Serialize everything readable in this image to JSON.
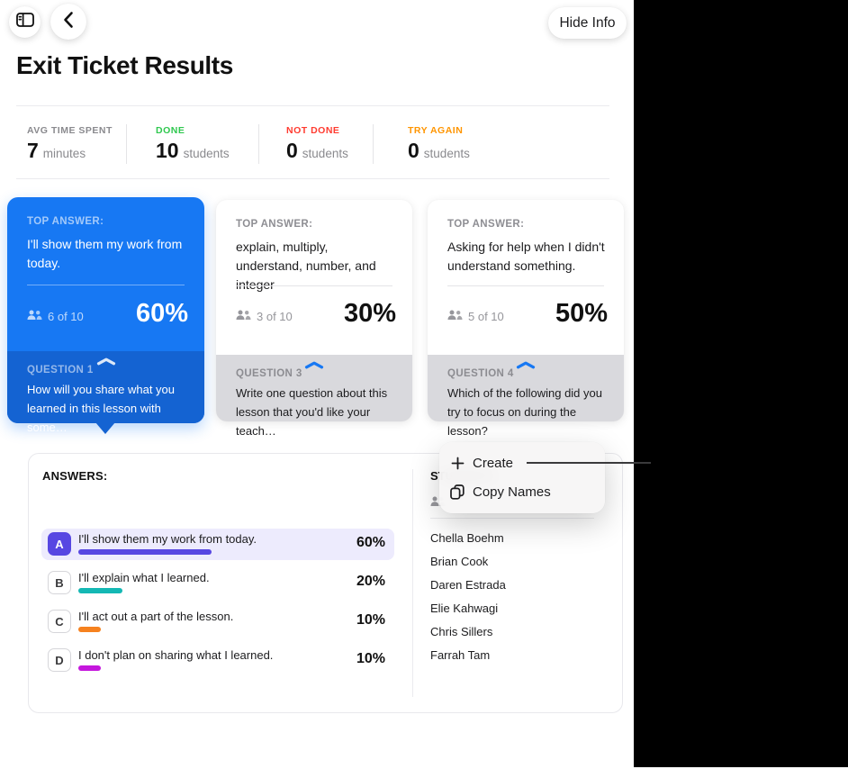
{
  "theme": {
    "accent-blue": "#1778f3",
    "accent-blue-dark": "#1463d2",
    "indigo": "#5747e2"
  },
  "header": {
    "title": "Exit Ticket Results",
    "hide_info_label": "Hide Info"
  },
  "stats": [
    {
      "label": "AVG TIME SPENT",
      "label_color": "#8a8a8e",
      "value": "7",
      "unit": "minutes"
    },
    {
      "label": "DONE",
      "label_color": "#2fc84f",
      "value": "10",
      "unit": "students"
    },
    {
      "label": "NOT DONE",
      "label_color": "#ff3b30",
      "value": "0",
      "unit": "students"
    },
    {
      "label": "TRY AGAIN",
      "label_color": "#ff9500",
      "value": "0",
      "unit": "students"
    }
  ],
  "labels": {
    "top_answer": "TOP ANSWER:"
  },
  "cards": [
    {
      "answer": "I'll show them my work from today.",
      "count": "6 of 10",
      "percent": "60%",
      "q_label": "QUESTION 1",
      "q_text": "How will you share what you learned in this lesson with some…"
    },
    {
      "answer": "explain, multiply, understand, number, and integer",
      "count": "3 of 10",
      "percent": "30%",
      "q_label": "QUESTION 3",
      "q_text": "Write one question about this lesson that you'd like your teach…"
    },
    {
      "answer": "Asking for help when I didn't understand something.",
      "count": "5 of 10",
      "percent": "50%",
      "q_label": "QUESTION 4",
      "q_text": "Which of the following did you try to focus on during the lesson?"
    }
  ],
  "answers": {
    "header": "ANSWERS:",
    "rows": [
      {
        "letter": "A",
        "text": "I'll show them my work from today.",
        "percent": 60,
        "percent_label": "60%",
        "color": "#5747e2"
      },
      {
        "letter": "B",
        "text": "I'll explain what I learned.",
        "percent": 20,
        "percent_label": "20%",
        "color": "#14b8b4"
      },
      {
        "letter": "C",
        "text": "I'll act out a part of the lesson.",
        "percent": 10,
        "percent_label": "10%",
        "color": "#f6821f"
      },
      {
        "letter": "D",
        "text": "I don't plan on sharing what I learned.",
        "percent": 10,
        "percent_label": "10%",
        "color": "#c517dd"
      }
    ]
  },
  "students": {
    "header": "STUDENTS:",
    "names": [
      "Chella Boehm",
      "Brian Cook",
      "Daren Estrada",
      "Elie Kahwagi",
      "Chris Sillers",
      "Farrah Tam"
    ]
  },
  "context_menu": {
    "items": [
      {
        "label": "Create"
      },
      {
        "label": "Copy Names"
      }
    ]
  }
}
